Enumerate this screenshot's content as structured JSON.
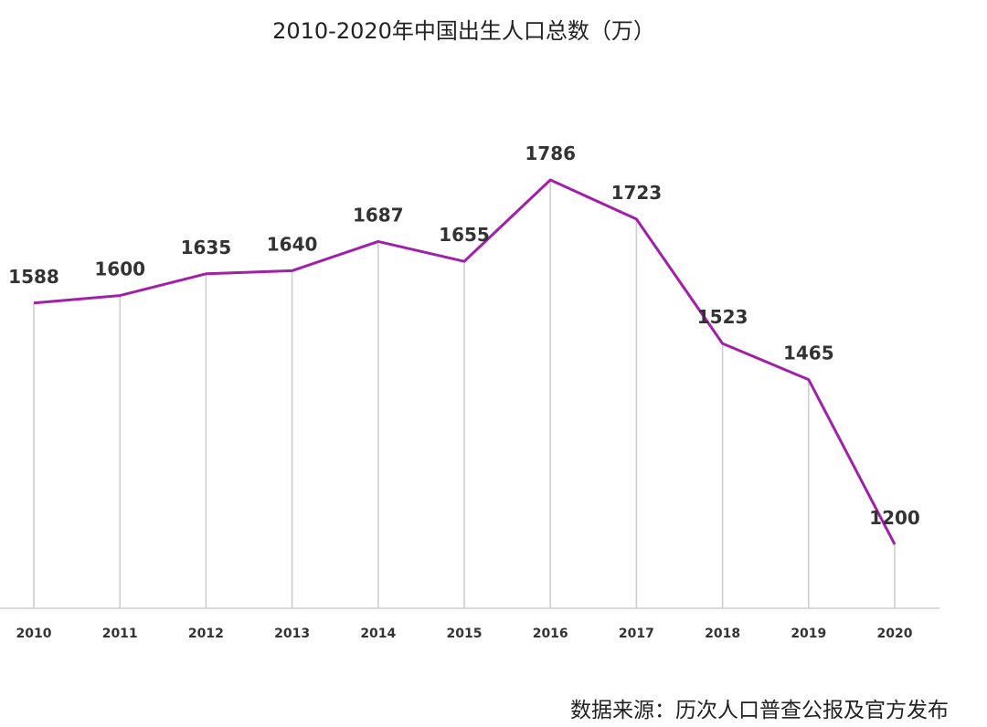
{
  "chart_data": {
    "type": "line",
    "title": "2010-2020年中国出生人口总数（万）",
    "source": "数据来源：历次人口普查公报及官方发布",
    "x": [
      "2010",
      "2011",
      "2012",
      "2013",
      "2014",
      "2015",
      "2016",
      "2017",
      "2018",
      "2019",
      "2020"
    ],
    "series": [
      {
        "values": [
          1588,
          1600,
          1635,
          1640,
          1687,
          1655,
          1786,
          1723,
          1523,
          1465,
          1200
        ]
      }
    ],
    "line_color": "#a020a8",
    "grid": "vertical drop lines",
    "legend": "none"
  }
}
